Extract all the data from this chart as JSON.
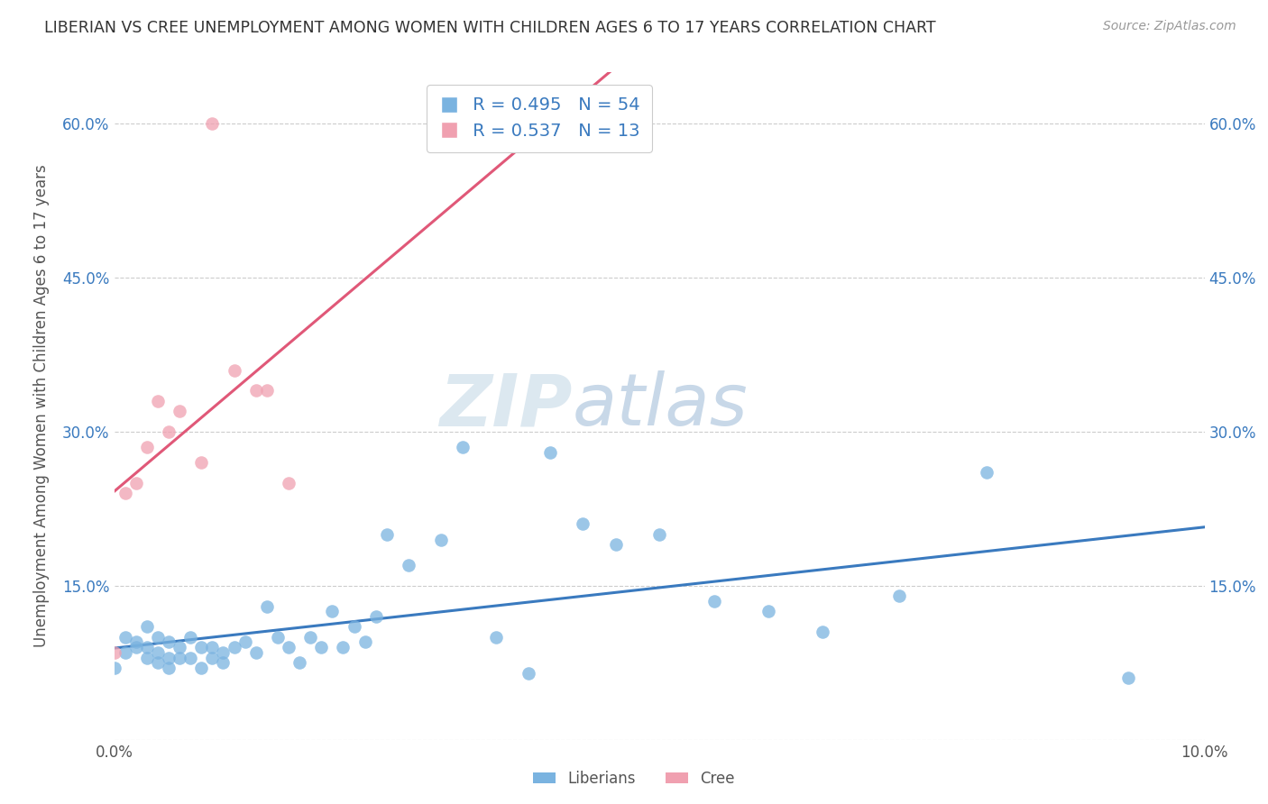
{
  "title": "LIBERIAN VS CREE UNEMPLOYMENT AMONG WOMEN WITH CHILDREN AGES 6 TO 17 YEARS CORRELATION CHART",
  "source": "Source: ZipAtlas.com",
  "ylabel": "Unemployment Among Women with Children Ages 6 to 17 years",
  "xlim": [
    0.0,
    0.1
  ],
  "ylim": [
    0.0,
    0.65
  ],
  "xticks": [
    0.0,
    0.02,
    0.04,
    0.06,
    0.08,
    0.1
  ],
  "xticklabels": [
    "0.0%",
    "",
    "",
    "",
    "",
    "10.0%"
  ],
  "yticks": [
    0.0,
    0.15,
    0.3,
    0.45,
    0.6
  ],
  "yticklabels": [
    "",
    "15.0%",
    "30.0%",
    "45.0%",
    "60.0%"
  ],
  "right_yticklabels": [
    "",
    "15.0%",
    "30.0%",
    "45.0%",
    "60.0%"
  ],
  "liberian_color": "#7ab3e0",
  "cree_color": "#f0a0b0",
  "liberian_line_color": "#3a7abf",
  "cree_line_color": "#e05878",
  "legend_R_liberian": "R = 0.495",
  "legend_N_liberian": "N = 54",
  "legend_R_cree": "R = 0.537",
  "legend_N_cree": "N = 13",
  "watermark_zip": "ZIP",
  "watermark_atlas": "atlas",
  "liberian_x": [
    0.0,
    0.001,
    0.001,
    0.002,
    0.002,
    0.003,
    0.003,
    0.003,
    0.004,
    0.004,
    0.004,
    0.005,
    0.005,
    0.005,
    0.006,
    0.006,
    0.007,
    0.007,
    0.008,
    0.008,
    0.009,
    0.009,
    0.01,
    0.01,
    0.011,
    0.012,
    0.013,
    0.014,
    0.015,
    0.016,
    0.017,
    0.018,
    0.019,
    0.02,
    0.021,
    0.022,
    0.023,
    0.024,
    0.025,
    0.027,
    0.03,
    0.032,
    0.035,
    0.038,
    0.04,
    0.043,
    0.046,
    0.05,
    0.055,
    0.06,
    0.065,
    0.072,
    0.08,
    0.093
  ],
  "liberian_y": [
    0.07,
    0.085,
    0.1,
    0.09,
    0.095,
    0.08,
    0.09,
    0.11,
    0.075,
    0.085,
    0.1,
    0.07,
    0.08,
    0.095,
    0.08,
    0.09,
    0.08,
    0.1,
    0.07,
    0.09,
    0.08,
    0.09,
    0.075,
    0.085,
    0.09,
    0.095,
    0.085,
    0.13,
    0.1,
    0.09,
    0.075,
    0.1,
    0.09,
    0.125,
    0.09,
    0.11,
    0.095,
    0.12,
    0.2,
    0.17,
    0.195,
    0.285,
    0.1,
    0.065,
    0.28,
    0.21,
    0.19,
    0.2,
    0.135,
    0.125,
    0.105,
    0.14,
    0.26,
    0.06
  ],
  "cree_x": [
    0.0,
    0.001,
    0.002,
    0.003,
    0.004,
    0.005,
    0.006,
    0.008,
    0.009,
    0.011,
    0.013,
    0.014,
    0.016
  ],
  "cree_y": [
    0.085,
    0.24,
    0.25,
    0.285,
    0.33,
    0.3,
    0.32,
    0.27,
    0.6,
    0.36,
    0.34,
    0.34,
    0.25
  ],
  "background_color": "#ffffff",
  "grid_color": "#cccccc"
}
